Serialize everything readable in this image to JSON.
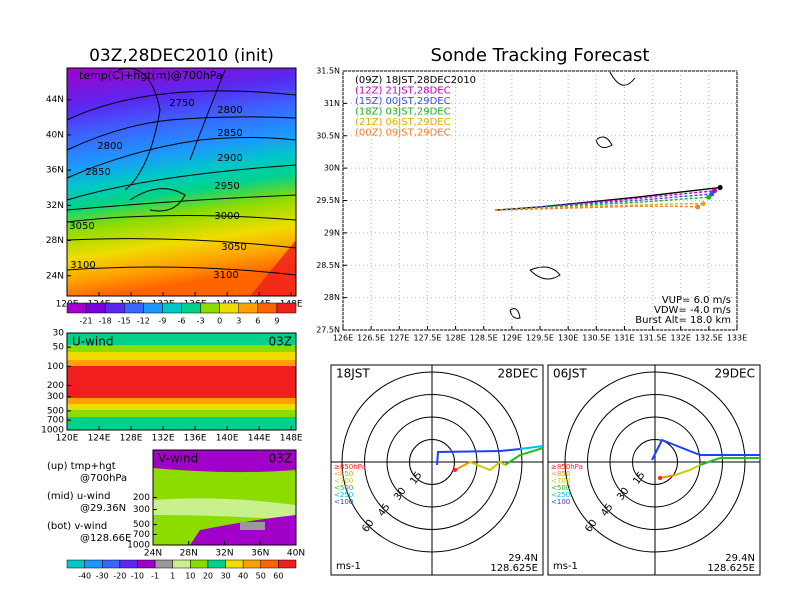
{
  "chart_data": [
    {
      "type": "map",
      "title": "03Z,28DEC2010 (init)",
      "label": "temp(C)+hgt(m)@700hPa",
      "xlim": [
        120,
        148.6
      ],
      "ylim": [
        21.7,
        47.6
      ],
      "xticks": [
        {
          "value": 120,
          "label": "120E"
        },
        {
          "value": 124,
          "label": "124E"
        },
        {
          "value": 128,
          "label": "128E"
        },
        {
          "value": 132,
          "label": "132E"
        },
        {
          "value": 136,
          "label": "136E"
        },
        {
          "value": 140,
          "label": "140E"
        },
        {
          "value": 144,
          "label": "144E"
        },
        {
          "value": 148,
          "label": "148E"
        }
      ],
      "yticks": [
        {
          "value": 24,
          "label": "24N"
        },
        {
          "value": 28,
          "label": "28N"
        },
        {
          "value": 32,
          "label": "32N"
        },
        {
          "value": 36,
          "label": "36N"
        },
        {
          "value": 40,
          "label": "40N"
        },
        {
          "value": 44,
          "label": "44N"
        }
      ],
      "contour_values": [
        2750,
        2800,
        2800,
        2850,
        2850,
        2900,
        2950,
        3000,
        3050,
        3050,
        3100,
        3100
      ],
      "colorbar": {
        "ticks": [
          -21,
          -18,
          -15,
          -12,
          -9,
          -6,
          -3,
          0,
          3,
          6,
          9
        ],
        "colors": [
          "#a000c8",
          "#7800dc",
          "#5a28f0",
          "#3c64ff",
          "#1e96ff",
          "#00c8c8",
          "#00d28c",
          "#8cdc00",
          "#f0dc00",
          "#ffa000",
          "#ff6400",
          "#f01e1e"
        ]
      }
    },
    {
      "type": "line",
      "title": "Sonde Tracking Forecast",
      "xlim": [
        126,
        133
      ],
      "ylim": [
        27.5,
        31.5
      ],
      "grid": true,
      "xticks": [
        {
          "value": 126,
          "label": "126E"
        },
        {
          "value": 126.5,
          "label": "126.5E"
        },
        {
          "value": 127,
          "label": "127E"
        },
        {
          "value": 127.5,
          "label": "127.5E"
        },
        {
          "value": 128,
          "label": "128E"
        },
        {
          "value": 128.5,
          "label": "128.5E"
        },
        {
          "value": 129,
          "label": "129E"
        },
        {
          "value": 129.5,
          "label": "129.5E"
        },
        {
          "value": 130,
          "label": "130E"
        },
        {
          "value": 130.5,
          "label": "130.5E"
        },
        {
          "value": 131,
          "label": "131E"
        },
        {
          "value": 131.5,
          "label": "131.5E"
        },
        {
          "value": 132,
          "label": "132E"
        },
        {
          "value": 132.5,
          "label": "132.5E"
        },
        {
          "value": 133,
          "label": "133E"
        }
      ],
      "yticks": [
        {
          "value": 27.5,
          "label": "27.5N"
        },
        {
          "value": 28,
          "label": "28N"
        },
        {
          "value": 28.5,
          "label": "28.5N"
        },
        {
          "value": 29,
          "label": "29N"
        },
        {
          "value": 29.5,
          "label": "29.5N"
        },
        {
          "value": 30,
          "label": "30N"
        },
        {
          "value": 30.5,
          "label": "30.5N"
        },
        {
          "value": 31,
          "label": "31N"
        },
        {
          "value": 31.5,
          "label": "31.5N"
        }
      ],
      "series": [
        {
          "name": "(09Z) 18JST,28DEC2010",
          "color": "#000000",
          "x": [
            128.7,
            129.5,
            130.3,
            131.2,
            132.0,
            132.7
          ],
          "values": [
            29.35,
            29.4,
            29.47,
            29.55,
            29.63,
            29.7
          ]
        },
        {
          "name": "(12Z) 21JST,28DEC",
          "color": "#c000c0",
          "x": [
            128.7,
            129.5,
            130.3,
            131.2,
            132.0,
            132.6
          ],
          "values": [
            29.35,
            29.4,
            29.46,
            29.53,
            29.6,
            29.65
          ]
        },
        {
          "name": "(15Z) 00JST,29DEC",
          "color": "#3050ff",
          "x": [
            128.7,
            129.5,
            130.3,
            131.2,
            132.0,
            132.55
          ],
          "values": [
            29.35,
            29.4,
            29.45,
            29.5,
            29.56,
            29.6
          ]
        },
        {
          "name": "(18Z) 03JST,29DEC",
          "color": "#20b020",
          "x": [
            128.7,
            129.5,
            130.3,
            131.2,
            132.0,
            132.5
          ],
          "values": [
            29.35,
            29.39,
            29.43,
            29.47,
            29.52,
            29.55
          ]
        },
        {
          "name": "(21Z) 06JST,29DEC",
          "color": "#e0b000",
          "x": [
            128.7,
            129.5,
            130.3,
            131.2,
            132.0,
            132.4
          ],
          "values": [
            29.35,
            29.38,
            29.41,
            29.43,
            29.45,
            29.45
          ]
        },
        {
          "name": "(00Z) 09JST,29DEC",
          "color": "#f08030",
          "x": [
            128.7,
            129.5,
            130.3,
            131.2,
            132.0,
            132.3
          ],
          "values": [
            29.35,
            29.37,
            29.39,
            29.41,
            29.41,
            29.4
          ]
        }
      ],
      "annotations": [
        "VUP= 6.0 m/s",
        "VDW= -4.0 m/s",
        "Burst Alt= 18.0 km"
      ]
    },
    {
      "type": "contour",
      "title": "U-wind",
      "time": "03Z",
      "ylog": true,
      "xlim": [
        120,
        148.6
      ],
      "ylim": [
        1000,
        30
      ],
      "xticks": [
        {
          "value": 120,
          "label": "120E"
        },
        {
          "value": 124,
          "label": "124E"
        },
        {
          "value": 128,
          "label": "128E"
        },
        {
          "value": 132,
          "label": "132E"
        },
        {
          "value": 136,
          "label": "136E"
        },
        {
          "value": 140,
          "label": "140E"
        },
        {
          "value": 144,
          "label": "144E"
        },
        {
          "value": 148,
          "label": "148E"
        }
      ],
      "yticks": [
        30,
        50,
        100,
        200,
        300,
        500,
        700,
        1000
      ]
    },
    {
      "type": "contour",
      "title": "V-wind",
      "time": "03Z",
      "ylog": true,
      "xlim": [
        24,
        40
      ],
      "ylim": [
        1000,
        40
      ],
      "xticks": [
        {
          "value": 24,
          "label": "24N"
        },
        {
          "value": 28,
          "label": "28N"
        },
        {
          "value": 32,
          "label": "32N"
        },
        {
          "value": 36,
          "label": "36N"
        },
        {
          "value": 40,
          "label": "40N"
        }
      ],
      "yticks": [
        200,
        300,
        500,
        700,
        1000
      ],
      "colorbar": {
        "ticks": [
          -40,
          -30,
          -20,
          -10,
          -1,
          1,
          10,
          20,
          30,
          40,
          50,
          60
        ],
        "colors": [
          "#00c8c8",
          "#1e96ff",
          "#3c64ff",
          "#5a28f0",
          "#a000c8",
          "#999999",
          "#c8f08c",
          "#8cdc00",
          "#00d28c",
          "#f0dc00",
          "#ffa000",
          "#ff6400",
          "#f01e1e"
        ]
      }
    },
    {
      "type": "hodograph",
      "time": "18JST",
      "date": "28DEC",
      "rings": [
        15,
        30,
        45,
        60
      ],
      "unit": "ms-1",
      "lat": "29.4N",
      "lon": "128.625E",
      "levels": [
        "≥850hPa",
        "<850",
        "<700",
        "<500",
        "<250",
        "<100"
      ],
      "level_colors": [
        "#ff2020",
        "#ff9000",
        "#c0d000",
        "#20c020",
        "#00c0e0",
        "#2040ff"
      ]
    },
    {
      "type": "hodograph",
      "time": "06JST",
      "date": "29DEC",
      "rings": [
        15,
        30,
        45,
        60
      ],
      "unit": "ms-1",
      "lat": "29.4N",
      "lon": "128.625E",
      "levels": [
        "≥850hPa",
        "<850",
        "<700",
        "<500",
        "<250",
        "<100"
      ],
      "level_colors": [
        "#ff2020",
        "#ff9000",
        "#c0d000",
        "#20c020",
        "#00c0e0",
        "#2040ff"
      ]
    }
  ],
  "side_notes": [
    "(up) tmp+hgt",
    "@700hPa",
    "(mid) u-wind",
    "@29.36N",
    "(bot) v-wind",
    "@128.66E"
  ]
}
